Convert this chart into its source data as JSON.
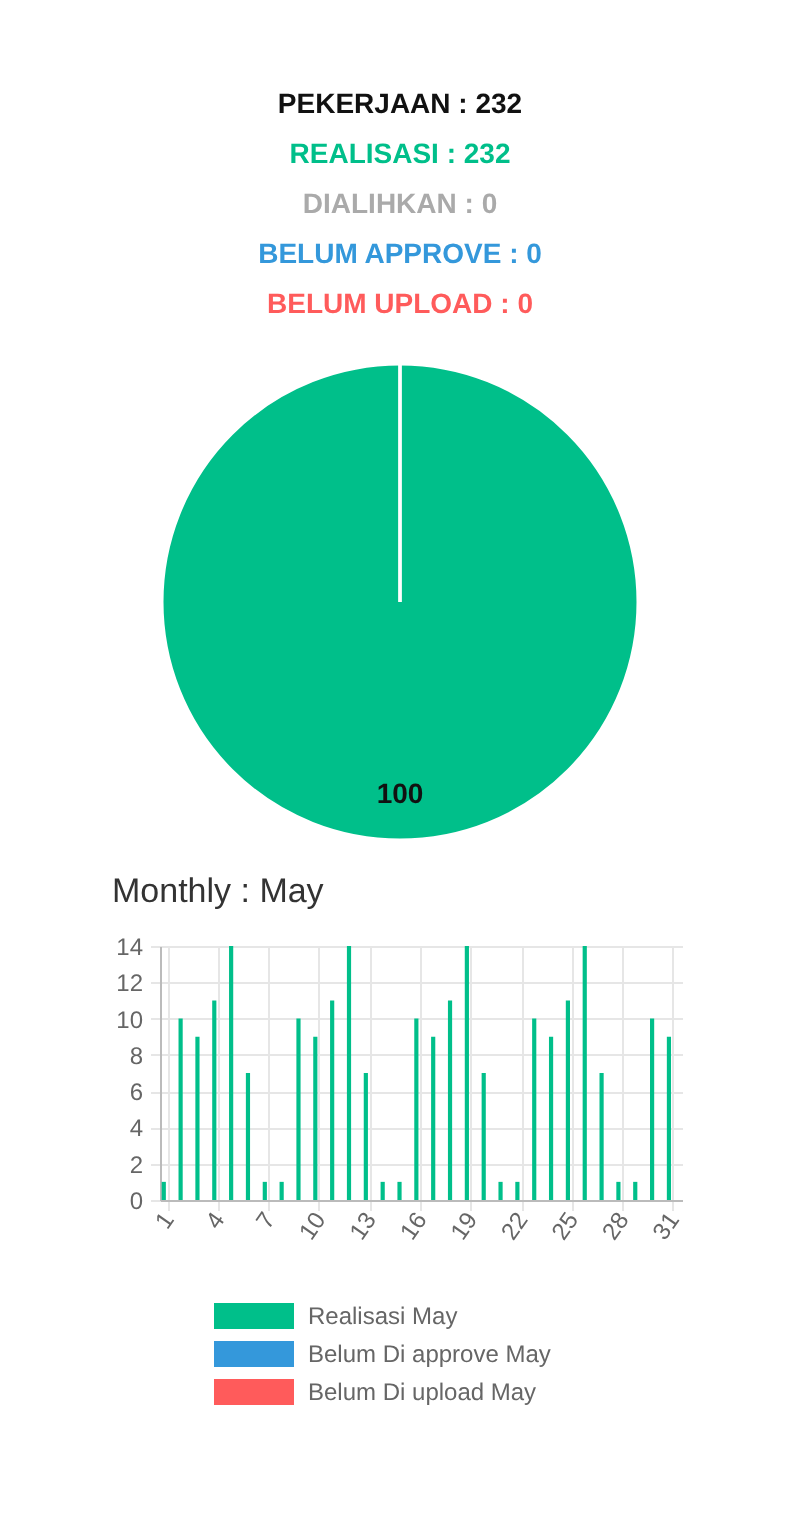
{
  "chart_data": [
    {
      "type": "pie",
      "title": "PEKERJAAN : 232",
      "categories": [
        "REALISASI : 232",
        "DIALIHKAN : 0",
        "BELUM APPROVE : 0",
        "BELUM UPLOAD : 0"
      ],
      "values": [
        100,
        0,
        0,
        0
      ],
      "colors": [
        "#00bf8a",
        "#aaaaaa",
        "#3498db",
        "#ff5b5b"
      ],
      "value_labels": [
        "100",
        null,
        null,
        null
      ]
    },
    {
      "type": "bar",
      "title": "Monthly : May",
      "categories": [
        "1",
        null,
        null,
        "4",
        null,
        null,
        "7",
        null,
        null,
        "10",
        null,
        null,
        "13",
        null,
        null,
        "16",
        null,
        null,
        "19",
        null,
        null,
        "22",
        null,
        null,
        "25",
        null,
        null,
        "28",
        null,
        null,
        "31"
      ],
      "series": [
        {
          "name": "Realisasi May",
          "color": "#00bf8a",
          "values": [
            1,
            10,
            9,
            11,
            14,
            7,
            1,
            1,
            10,
            9,
            11,
            14,
            7,
            1,
            1,
            10,
            9,
            11,
            14,
            7,
            1,
            1,
            10,
            9,
            11,
            14,
            7,
            1,
            1,
            10,
            9
          ]
        },
        {
          "name": "Belum Di approve May",
          "color": "#3498db",
          "values": [
            0,
            0,
            0,
            0,
            0,
            0,
            0,
            0,
            0,
            0,
            0,
            0,
            0,
            0,
            0,
            0,
            0,
            0,
            0,
            0,
            0,
            0,
            0,
            0,
            0,
            0,
            0,
            0,
            0,
            0,
            0
          ]
        },
        {
          "name": "Belum Di upload May",
          "color": "#ff5b5b",
          "values": [
            0,
            0,
            0,
            0,
            0,
            0,
            0,
            0,
            0,
            0,
            0,
            0,
            0,
            0,
            0,
            0,
            0,
            0,
            0,
            0,
            0,
            0,
            0,
            0,
            0,
            0,
            0,
            0,
            0,
            0,
            0
          ]
        }
      ],
      "ylim": [
        0,
        14
      ],
      "yticks": [
        0,
        2,
        4,
        6,
        8,
        10,
        12,
        14
      ],
      "grid": true,
      "legend": "bottom"
    }
  ]
}
